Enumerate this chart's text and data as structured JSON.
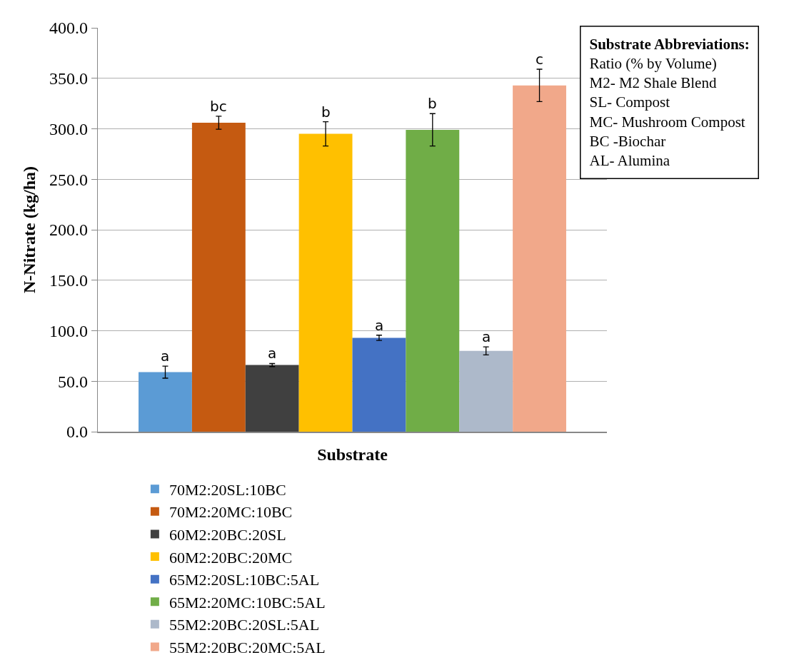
{
  "chart_data": {
    "type": "bar",
    "xlabel": "Substrate",
    "ylabel": "N-Nitrate (kg/ha)",
    "categories": [
      null
    ],
    "series": [
      {
        "name": "70M2:20SL:10BC",
        "color": "#5b9bd5",
        "values": [
          59
        ],
        "errors": [
          6
        ],
        "value_labels": [
          "a"
        ]
      },
      {
        "name": "70M2:20MC:10BC",
        "color": "#c55a11",
        "values": [
          306
        ],
        "errors": [
          6.5
        ],
        "value_labels": [
          "bc"
        ]
      },
      {
        "name": "60M2:20BC:20SL",
        "color": "#404040",
        "values": [
          66
        ],
        "errors": [
          1.5
        ],
        "value_labels": [
          "a"
        ]
      },
      {
        "name": "60M2:20BC:20MC",
        "color": "#ffc000",
        "values": [
          295
        ],
        "errors": [
          12
        ],
        "value_labels": [
          "b"
        ]
      },
      {
        "name": "65M2:20SL:10BC:5AL",
        "color": "#4472c4",
        "values": [
          93
        ],
        "errors": [
          2.6
        ],
        "value_labels": [
          "a"
        ]
      },
      {
        "name": "65M2:20MC:10BC:5AL",
        "color": "#70ad47",
        "values": [
          299
        ],
        "errors": [
          16
        ],
        "value_labels": [
          "b"
        ]
      },
      {
        "name": "55M2:20BC:20SL:5AL",
        "color": "#adb9ca",
        "values": [
          80
        ],
        "errors": [
          4
        ],
        "value_labels": [
          "a"
        ]
      },
      {
        "name": "55M2:20BC:20MC:5AL",
        "color": "#f1a88a",
        "values": [
          343
        ],
        "errors": [
          16
        ],
        "value_labels": [
          "c"
        ]
      }
    ],
    "ylim": [
      0,
      400
    ],
    "yticks": [
      {
        "value": 0,
        "label": "0.0"
      },
      {
        "value": 50,
        "label": "50.0"
      },
      {
        "value": 100,
        "label": "100.0"
      },
      {
        "value": 150,
        "label": "150.0"
      },
      {
        "value": 200,
        "label": "200.0"
      },
      {
        "value": 250,
        "label": "250.0"
      },
      {
        "value": 300,
        "label": "300.0"
      },
      {
        "value": 350,
        "label": "350.0"
      },
      {
        "value": 400,
        "label": "400.0"
      }
    ],
    "grid": "y",
    "legend": "bottom",
    "annotations": [
      "Substrate Abbreviations:",
      "Ratio (% by Volume)\nM2- M2 Shale Blend\nSL- Compost\nMC- Mushroom Compost\nBC -Biochar\nAL- Alumina"
    ]
  }
}
